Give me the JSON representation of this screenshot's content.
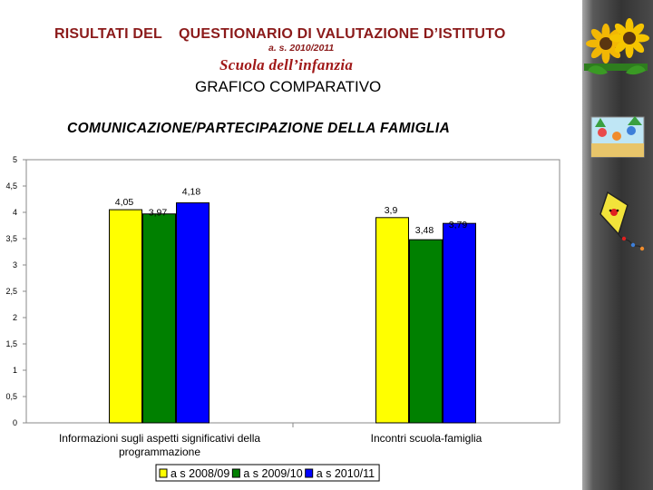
{
  "slide": {
    "title_part1": "RISULTATI  DEL",
    "title_part2": "QUESTIONARIO DI VALUTAZIONE D’ISTITUTO",
    "subtitle": "a. s. 2010/2011",
    "school": "Scuola  dell’infanzia",
    "heading": "GRAFICO COMPARATIVO"
  },
  "icons": [
    "sunflower-icon",
    "children-playing-icon",
    "kite-icon"
  ],
  "chart_data": {
    "type": "bar",
    "title": "COMUNICAZIONE/PARTECIPAZIONE DELLA FAMIGLIA",
    "categories": [
      [
        "Informazioni sugli aspetti significativi della",
        "programmazione"
      ],
      [
        "Incontri scuola-famiglia"
      ]
    ],
    "series": [
      {
        "name": "a s 2008/09",
        "color": "#ffff00",
        "values": [
          4.05,
          3.9
        ],
        "labels": [
          "4,05",
          "3,9"
        ]
      },
      {
        "name": "a s 2009/10",
        "color": "#008000",
        "values": [
          3.97,
          3.48
        ],
        "labels": [
          "3,97",
          "3,48"
        ]
      },
      {
        "name": "a s 2010/11",
        "color": "#0000ff",
        "values": [
          4.18,
          3.79
        ],
        "labels": [
          "4,18",
          "3,79"
        ]
      }
    ],
    "ylim": [
      0,
      5
    ],
    "yticks": [
      {
        "value": 0,
        "label": "0"
      },
      {
        "value": 0.5,
        "label": "0,5"
      },
      {
        "value": 1,
        "label": "1"
      },
      {
        "value": 1.5,
        "label": "1,5"
      },
      {
        "value": 2,
        "label": "2"
      },
      {
        "value": 2.5,
        "label": "2,5"
      },
      {
        "value": 3,
        "label": "3"
      },
      {
        "value": 3.5,
        "label": "3,5"
      },
      {
        "value": 4,
        "label": "4"
      },
      {
        "value": 4.5,
        "label": "4,5"
      },
      {
        "value": 5,
        "label": "5"
      }
    ],
    "grid": false,
    "legend": "bottom"
  }
}
